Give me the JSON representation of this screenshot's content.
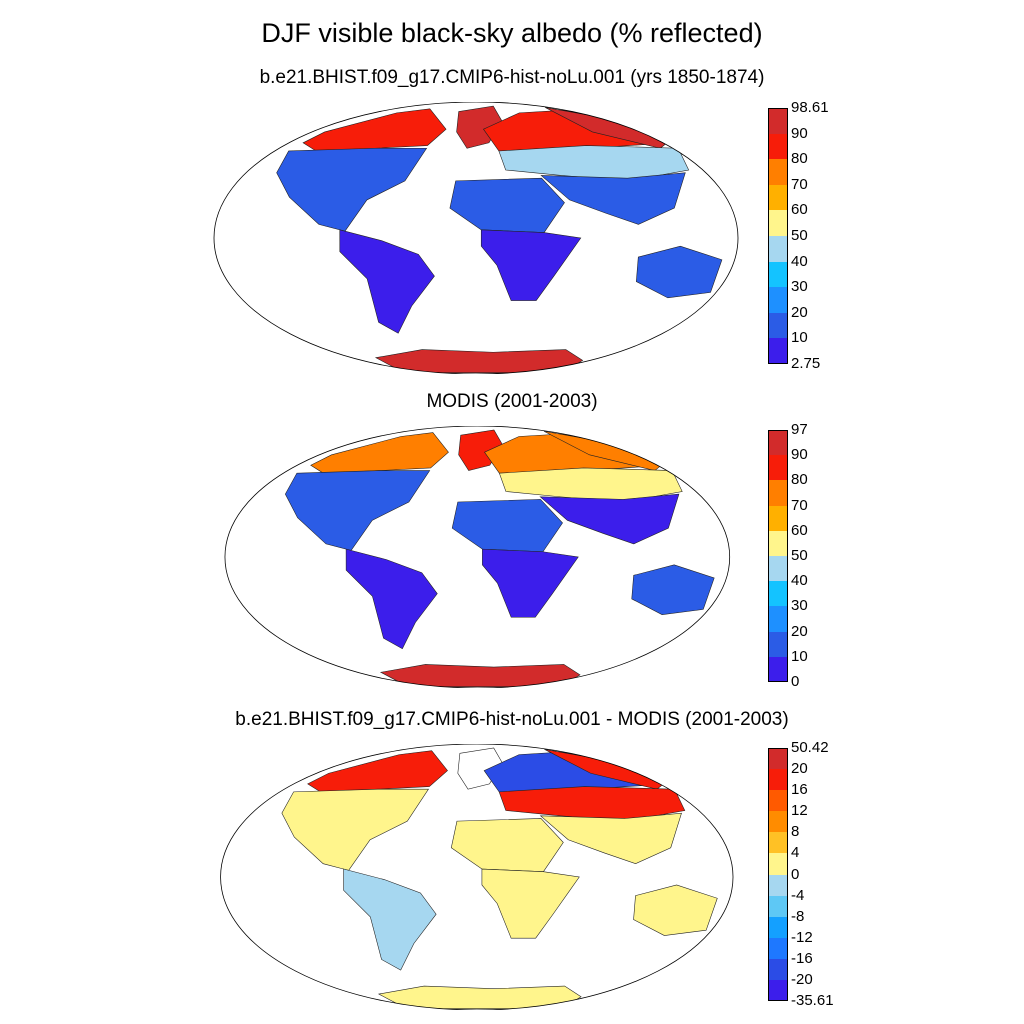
{
  "figure": {
    "title": "DJF visible black-sky albedo (% reflected)"
  },
  "panels": [
    {
      "title": "b.e21.BHIST.f09_g17.CMIP6-hist-noLu.001 (yrs 1850-1874)",
      "colorbar_labels": [
        "98.61",
        "90",
        "80",
        "70",
        "60",
        "50",
        "40",
        "30",
        "20",
        "10",
        "2.75"
      ],
      "colorbar_colors": [
        "#d22b2b",
        "#f71d09",
        "#ff7f00",
        "#ffb000",
        "#fff58c",
        "#a6d7f0",
        "#14c3ff",
        "#1e90ff",
        "#2b5ce6",
        "#3c1eeb"
      ],
      "regions": {
        "americas_south": "#3c1eeb",
        "americas_north_mid": "#2b5ce6",
        "arctic_canada": "#f71d09",
        "greenland": "#d22b2b",
        "africa_south": "#3c1eeb",
        "africa_north": "#2b5ce6",
        "eurasia_south": "#2b5ce6",
        "eurasia_mid": "#a6d7f0",
        "eurasia_north": "#f71d09",
        "siberia_far": "#d22b2b",
        "australia": "#2b5ce6",
        "antarctica": "#d22b2b"
      }
    },
    {
      "title": "MODIS (2001-2003)",
      "colorbar_labels": [
        "97",
        "90",
        "80",
        "70",
        "60",
        "50",
        "40",
        "30",
        "20",
        "10",
        "0"
      ],
      "colorbar_colors": [
        "#d22b2b",
        "#f71d09",
        "#ff7f00",
        "#ffb000",
        "#fff58c",
        "#a6d7f0",
        "#14c3ff",
        "#1e90ff",
        "#2b5ce6",
        "#3c1eeb"
      ],
      "regions": {
        "americas_south": "#3c1eeb",
        "americas_north_mid": "#2b5ce6",
        "arctic_canada": "#ff7f00",
        "greenland": "#f71d09",
        "africa_south": "#3c1eeb",
        "africa_north": "#2b5ce6",
        "eurasia_south": "#3c1eeb",
        "eurasia_mid": "#fff58c",
        "eurasia_north": "#ff7f00",
        "siberia_far": "#ff7f00",
        "australia": "#2b5ce6",
        "antarctica": "#d22b2b"
      }
    },
    {
      "title": "b.e21.BHIST.f09_g17.CMIP6-hist-noLu.001 - MODIS (2001-2003)",
      "colorbar_labels": [
        "50.42",
        "20",
        "16",
        "12",
        "8",
        "4",
        "0",
        "-4",
        "-8",
        "-12",
        "-16",
        "-20",
        "-35.61"
      ],
      "colorbar_colors": [
        "#d22b2b",
        "#f71d09",
        "#ff5a00",
        "#ff8c00",
        "#ffc125",
        "#fff58c",
        "#a6d7f0",
        "#5ec8f5",
        "#14a0ff",
        "#1e78ff",
        "#2b4ce6",
        "#3c1eeb"
      ],
      "regions": {
        "americas_south": "#a6d7f0",
        "americas_north_mid": "#fff58c",
        "arctic_canada": "#f71d09",
        "greenland": "#ffffff",
        "africa_south": "#fff58c",
        "africa_north": "#fff58c",
        "eurasia_south": "#fff58c",
        "eurasia_mid": "#f71d09",
        "eurasia_north": "#2b4ce6",
        "siberia_far": "#f71d09",
        "australia": "#fff58c",
        "antarctica": "#fff58c"
      }
    }
  ]
}
